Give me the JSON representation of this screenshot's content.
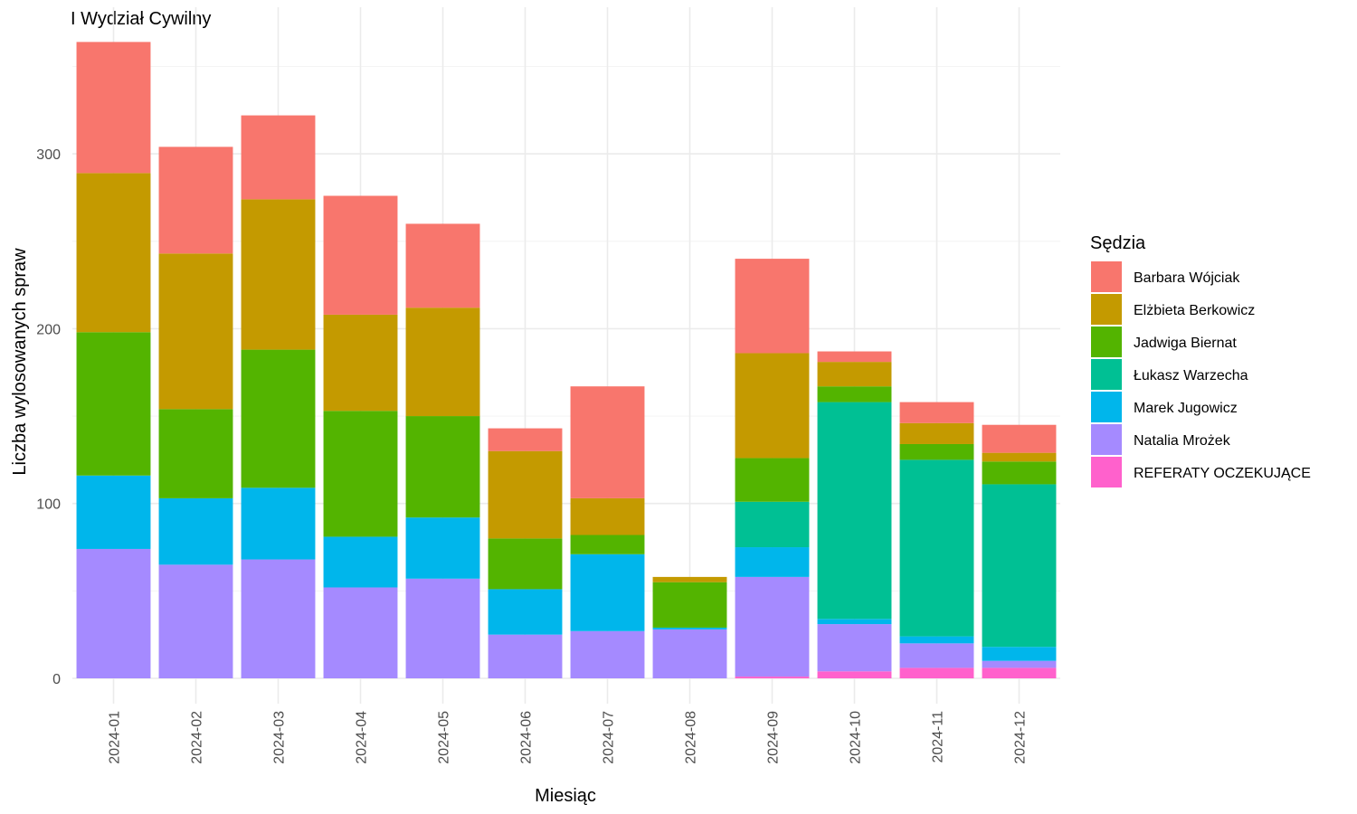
{
  "chart_data": {
    "type": "bar",
    "stacked": true,
    "title": "I Wydział Cywilny",
    "xlabel": "Miesiąc",
    "ylabel": "Liczba wylosowanych spraw",
    "ylim": [
      0,
      380
    ],
    "yticks": [
      0,
      100,
      200,
      300
    ],
    "grid": true,
    "legend": {
      "title": "Sędzia",
      "position": "right"
    },
    "categories": [
      "2024-01",
      "2024-02",
      "2024-03",
      "2024-04",
      "2024-05",
      "2024-06",
      "2024-07",
      "2024-08",
      "2024-09",
      "2024-10",
      "2024-11",
      "2024-12"
    ],
    "series": [
      {
        "name": "REFERATY OCZEKUJĄCE",
        "color": "#FF61CC",
        "values": [
          0,
          0,
          0,
          0,
          0,
          0,
          0,
          0,
          1,
          4,
          6,
          6
        ]
      },
      {
        "name": "Natalia Mrożek",
        "color": "#A58AFF",
        "values": [
          74,
          65,
          68,
          52,
          57,
          25,
          27,
          28,
          57,
          27,
          14,
          4
        ]
      },
      {
        "name": "Marek Jugowicz",
        "color": "#00B6EB",
        "values": [
          42,
          38,
          41,
          29,
          35,
          26,
          44,
          1,
          17,
          3,
          4,
          8
        ]
      },
      {
        "name": "Łukasz Warzecha",
        "color": "#00C094",
        "values": [
          0,
          0,
          0,
          0,
          0,
          0,
          0,
          0,
          26,
          124,
          101,
          93
        ]
      },
      {
        "name": "Jadwiga Biernat",
        "color": "#53B400",
        "values": [
          82,
          51,
          79,
          72,
          58,
          29,
          11,
          26,
          25,
          9,
          9,
          13
        ]
      },
      {
        "name": "Elżbieta Berkowicz",
        "color": "#C49A00",
        "values": [
          91,
          89,
          86,
          55,
          62,
          50,
          21,
          3,
          60,
          14,
          12,
          5
        ]
      },
      {
        "name": "Barbara Wójciak",
        "color": "#F8766D",
        "values": [
          75,
          61,
          48,
          68,
          48,
          13,
          64,
          0,
          54,
          6,
          12,
          16
        ]
      }
    ],
    "legend_order": [
      "Barbara Wójciak",
      "Elżbieta Berkowicz",
      "Jadwiga Biernat",
      "Łukasz Warzecha",
      "Marek Jugowicz",
      "Natalia Mrożek",
      "REFERATY OCZEKUJĄCE"
    ]
  }
}
